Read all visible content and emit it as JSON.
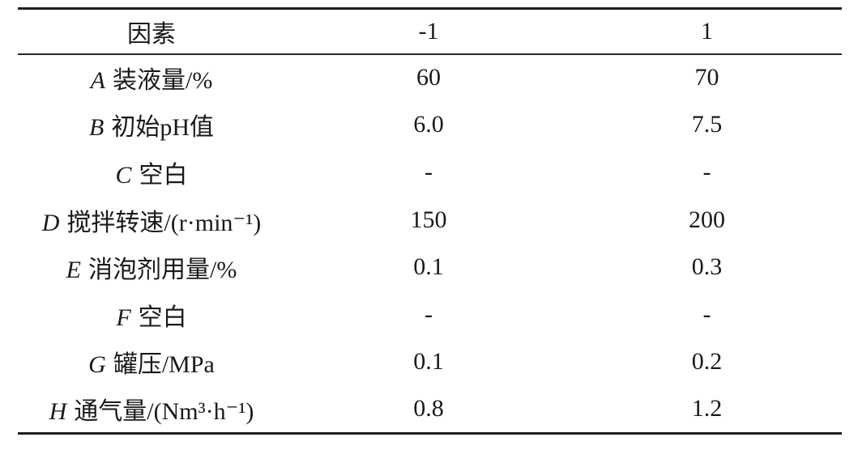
{
  "table": {
    "header": {
      "factor": "因素",
      "low": "-1",
      "high": "1"
    },
    "rows": [
      {
        "letter": "A",
        "label": "装液量/%",
        "low": "60",
        "high": "70"
      },
      {
        "letter": "B",
        "label": "初始pH值",
        "low": "6.0",
        "high": "7.5"
      },
      {
        "letter": "C",
        "label": "空白",
        "low": "-",
        "high": "-"
      },
      {
        "letter": "D",
        "label": "搅拌转速/(r·min⁻¹)",
        "low": "150",
        "high": "200"
      },
      {
        "letter": "E",
        "label": "消泡剂用量/%",
        "low": "0.1",
        "high": "0.3"
      },
      {
        "letter": "F",
        "label": "空白",
        "low": "-",
        "high": "-"
      },
      {
        "letter": "G",
        "label": "罐压/MPa",
        "low": "0.1",
        "high": "0.2"
      },
      {
        "letter": "H",
        "label": "通气量/(Nm³·h⁻¹)",
        "low": "0.8",
        "high": "1.2"
      }
    ]
  },
  "colors": {
    "text": "#1a1a1a",
    "rule": "#1f1f1f",
    "background": "#ffffff"
  }
}
